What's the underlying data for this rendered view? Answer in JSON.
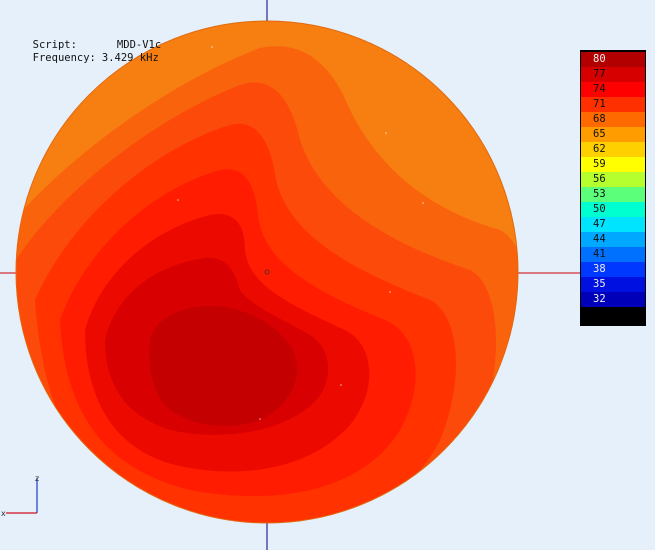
{
  "info": {
    "script_label": "Script:",
    "script_value": "MDD-V1c",
    "frequency_label": "Frequency:",
    "frequency_value": "3.429 kHz"
  },
  "legend": {
    "entries": [
      {
        "label": "80",
        "color": "#b20000"
      },
      {
        "label": "77",
        "color": "#d60000"
      },
      {
        "label": "74",
        "color": "#ff0000"
      },
      {
        "label": "71",
        "color": "#ff3000"
      },
      {
        "label": "68",
        "color": "#ff6a00"
      },
      {
        "label": "65",
        "color": "#ff9c00"
      },
      {
        "label": "62",
        "color": "#ffd000"
      },
      {
        "label": "59",
        "color": "#ffff00"
      },
      {
        "label": "56",
        "color": "#b6ff2e"
      },
      {
        "label": "53",
        "color": "#5cff7a"
      },
      {
        "label": "50",
        "color": "#00ffd0"
      },
      {
        "label": "47",
        "color": "#00e4ff"
      },
      {
        "label": "44",
        "color": "#00a8ff"
      },
      {
        "label": "41",
        "color": "#0070ff"
      },
      {
        "label": "38",
        "color": "#0038ff"
      },
      {
        "label": "35",
        "color": "#0010e0"
      },
      {
        "label": "32",
        "color": "#0000b8"
      }
    ]
  },
  "axes": {
    "x_label": "x",
    "z_label": "z"
  },
  "colors": {
    "background": "#e6f0fb",
    "crosshair_vertical": "#000080",
    "crosshair_horizontal": "#cc0000",
    "sphere_outer": "#f77e10"
  }
}
